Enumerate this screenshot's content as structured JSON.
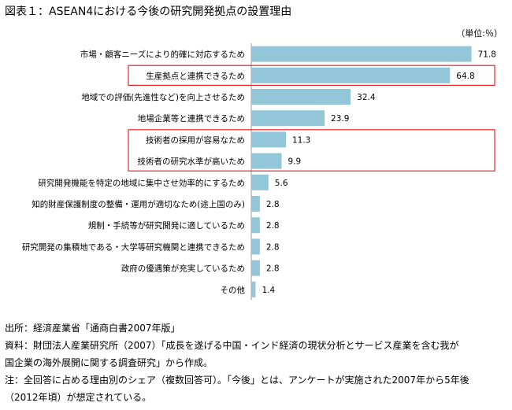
{
  "title": "図表１：ASEAN4における今後の研究開発拠点の設置理由",
  "unit": "（単位:％）",
  "colors": {
    "bar": "#93c6d8",
    "highlight": "#e0292d",
    "axis": "#999999"
  },
  "chart_data": {
    "type": "bar",
    "orientation": "horizontal",
    "title": "図表１：ASEAN4における今後の研究開発拠点の設置理由",
    "unit": "（単位:％）",
    "xlim": [
      0,
      75
    ],
    "grid": false,
    "categories": [
      "市場・顧客ニーズにより的確に対応するため",
      "生産拠点と連携できるため",
      "地域での評価(先進性など)を向上させるため",
      "地場企業等と連携できるため",
      "技術者の採用が容易なため",
      "技術者の研究水準が高いため",
      "研究開発機能を特定の地域に集中させ効率的にするため",
      "知的財産保護制度の整備・運用が適切なため(途上国のみ)",
      "規制・手続等が研究開発に適しているため",
      "研究開発の集積地である・大学等研究機関と連携できるため",
      "政府の優遇策が充実しているため",
      "その他"
    ],
    "values": [
      71.8,
      64.8,
      32.4,
      23.9,
      11.3,
      9.9,
      5.6,
      2.8,
      2.8,
      2.8,
      2.8,
      1.4
    ],
    "value_labels": [
      "71.8",
      "64.8",
      "32.4",
      "23.9",
      "11.3",
      "9.9",
      "5.6",
      "2.8",
      "2.8",
      "2.8",
      "2.8",
      "1.4"
    ],
    "highlight_groups": [
      [
        1
      ],
      [
        4,
        5
      ]
    ]
  },
  "notes": [
    "出所：経済産業省「通商白書2007年版」",
    "資料：財団法人産業研究所（2007）「成長を遂げる中国・インド経済の現状分析とサービス産業を含む我が",
    "国企業の海外展開に関する調査研究」から作成。",
    "注：全回答に占める理由別のシェア（複数回答可）。「今後」とは、アンケートが実施された2007年から5年後",
    "（2012年頃）が想定されている。"
  ]
}
